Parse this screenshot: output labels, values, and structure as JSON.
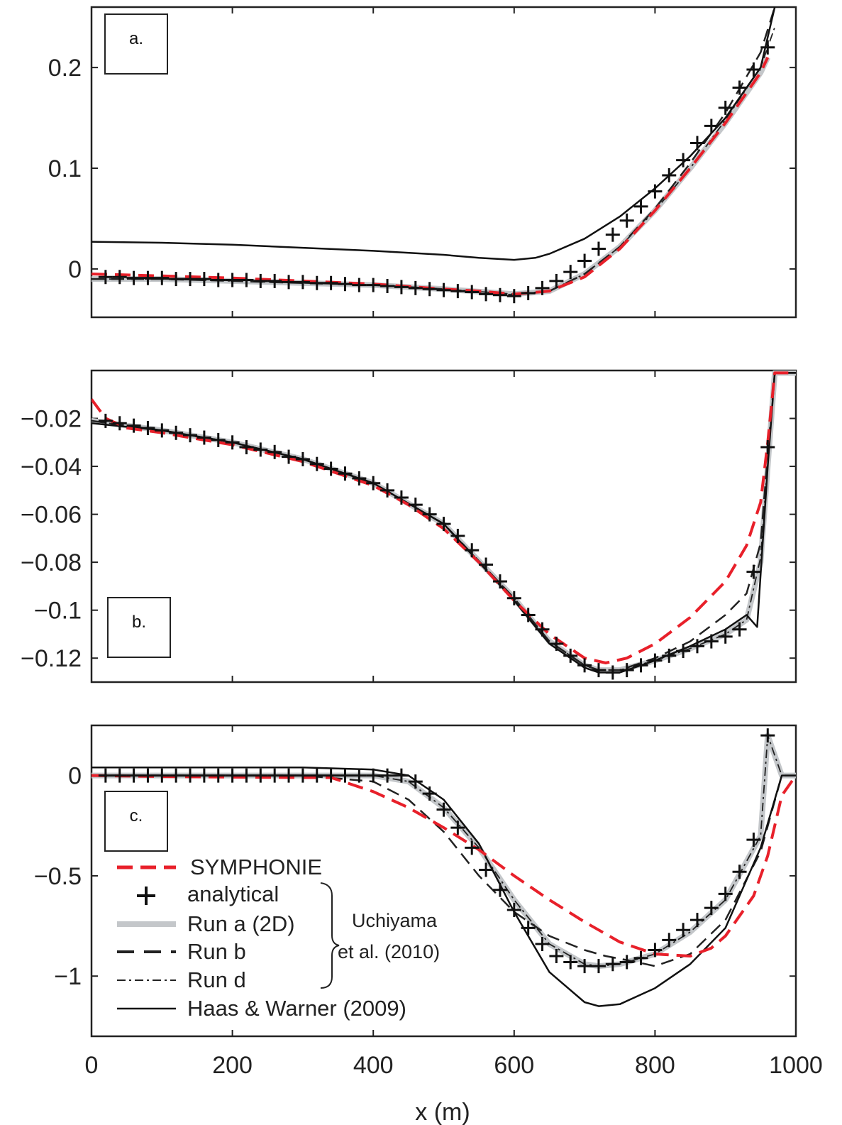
{
  "colors": {
    "symphonie": "#e8202a",
    "analytical": "#111111",
    "run_a": "#c4c7ca",
    "run_b": "#222222",
    "run_d": "#222222",
    "haas": "#111111"
  },
  "xlabel": "x (m)",
  "legend": {
    "entries": [
      "SYMPHONIE",
      "analytical",
      "Run a (2D)",
      "Run b",
      "Run d",
      "Haas & Warner (2009)"
    ],
    "group_note": [
      "Uchiyama",
      "et al. (2010)"
    ]
  },
  "chart_data": [
    {
      "type": "line",
      "panel_label": "a.",
      "xlim": [
        0,
        1000
      ],
      "ylim": [
        -0.048,
        0.26
      ],
      "xticks": [
        0,
        200,
        400,
        600,
        800,
        1000
      ],
      "yticks": [
        0,
        0.1,
        0.2
      ],
      "ytick_labels": [
        "0",
        "0.1",
        "0.2"
      ],
      "series": [
        {
          "name": "SYMPHONIE",
          "x": [
            0,
            100,
            200,
            300,
            400,
            500,
            550,
            600,
            650,
            700,
            750,
            800,
            850,
            900,
            950,
            960
          ],
          "y": [
            -0.005,
            -0.007,
            -0.009,
            -0.012,
            -0.015,
            -0.02,
            -0.022,
            -0.025,
            -0.022,
            -0.008,
            0.02,
            0.058,
            0.1,
            0.145,
            0.195,
            0.21
          ]
        },
        {
          "name": "analytical",
          "x": [
            20,
            40,
            60,
            80,
            100,
            120,
            140,
            160,
            180,
            200,
            220,
            240,
            260,
            280,
            300,
            320,
            340,
            360,
            380,
            400,
            420,
            440,
            460,
            480,
            500,
            520,
            540,
            560,
            580,
            600,
            620,
            640,
            660,
            680,
            700,
            720,
            740,
            760,
            780,
            800,
            820,
            840,
            860,
            880,
            900,
            920,
            940,
            960
          ],
          "y": [
            -0.008,
            -0.008,
            -0.009,
            -0.009,
            -0.009,
            -0.01,
            -0.01,
            -0.01,
            -0.011,
            -0.011,
            -0.011,
            -0.012,
            -0.012,
            -0.013,
            -0.013,
            -0.014,
            -0.014,
            -0.015,
            -0.016,
            -0.016,
            -0.017,
            -0.018,
            -0.019,
            -0.02,
            -0.021,
            -0.022,
            -0.023,
            -0.025,
            -0.026,
            -0.027,
            -0.024,
            -0.019,
            -0.012,
            -0.003,
            0.008,
            0.02,
            0.034,
            0.048,
            0.062,
            0.077,
            0.093,
            0.108,
            0.125,
            0.142,
            0.16,
            0.18,
            0.198,
            0.22
          ]
        },
        {
          "name": "Run a (2D)",
          "x": [
            0,
            100,
            200,
            300,
            400,
            500,
            600,
            650,
            700,
            750,
            800,
            850,
            900,
            950,
            960
          ],
          "y": [
            -0.01,
            -0.01,
            -0.012,
            -0.014,
            -0.016,
            -0.02,
            -0.025,
            -0.022,
            -0.005,
            0.022,
            0.058,
            0.1,
            0.145,
            0.195,
            0.21
          ]
        },
        {
          "name": "Run b",
          "x": [
            0,
            100,
            200,
            300,
            400,
            500,
            600,
            650,
            700,
            750,
            800,
            850,
            900,
            950,
            970
          ],
          "y": [
            -0.01,
            -0.01,
            -0.012,
            -0.014,
            -0.016,
            -0.02,
            -0.026,
            -0.022,
            -0.005,
            0.022,
            0.06,
            0.105,
            0.155,
            0.215,
            0.26
          ]
        },
        {
          "name": "Run d",
          "x": [
            0,
            100,
            200,
            300,
            400,
            500,
            600,
            650,
            700,
            750,
            800,
            850,
            900,
            950,
            970
          ],
          "y": [
            -0.01,
            -0.01,
            -0.012,
            -0.014,
            -0.016,
            -0.02,
            -0.025,
            -0.022,
            -0.005,
            0.022,
            0.058,
            0.1,
            0.148,
            0.2,
            0.24
          ]
        },
        {
          "name": "Haas & Warner (2009)",
          "x": [
            0,
            100,
            200,
            300,
            400,
            500,
            550,
            600,
            630,
            650,
            700,
            750,
            800,
            850,
            900,
            950,
            970
          ],
          "y": [
            0.027,
            0.026,
            0.024,
            0.021,
            0.018,
            0.014,
            0.011,
            0.009,
            0.011,
            0.015,
            0.03,
            0.052,
            0.08,
            0.112,
            0.15,
            0.2,
            0.26
          ]
        }
      ]
    },
    {
      "type": "line",
      "panel_label": "b.",
      "xlim": [
        0,
        1000
      ],
      "ylim": [
        -0.13,
        0.0
      ],
      "xticks": [
        0,
        200,
        400,
        600,
        800,
        1000
      ],
      "yticks": [
        -0.02,
        -0.04,
        -0.06,
        -0.08,
        -0.1,
        -0.12
      ],
      "ytick_labels": [
        "−0.02",
        "−0.04",
        "−0.06",
        "−0.08",
        "−0.1",
        "−0.12"
      ],
      "series": [
        {
          "name": "SYMPHONIE",
          "x": [
            0,
            20,
            50,
            100,
            200,
            300,
            400,
            450,
            500,
            550,
            600,
            650,
            700,
            730,
            760,
            800,
            850,
            900,
            930,
            950,
            960,
            970,
            1000
          ],
          "y": [
            -0.012,
            -0.02,
            -0.024,
            -0.026,
            -0.031,
            -0.038,
            -0.048,
            -0.056,
            -0.066,
            -0.08,
            -0.096,
            -0.11,
            -0.12,
            -0.122,
            -0.12,
            -0.114,
            -0.103,
            -0.088,
            -0.073,
            -0.055,
            -0.03,
            -0.001,
            -0.001
          ]
        },
        {
          "name": "analytical",
          "x": [
            20,
            40,
            60,
            80,
            100,
            120,
            140,
            160,
            180,
            200,
            220,
            240,
            260,
            280,
            300,
            320,
            340,
            360,
            380,
            400,
            420,
            440,
            460,
            480,
            500,
            520,
            540,
            560,
            580,
            600,
            620,
            640,
            660,
            680,
            700,
            720,
            740,
            760,
            780,
            800,
            820,
            840,
            860,
            880,
            900,
            920,
            940,
            960
          ],
          "y": [
            -0.021,
            -0.022,
            -0.023,
            -0.024,
            -0.025,
            -0.026,
            -0.027,
            -0.028,
            -0.029,
            -0.03,
            -0.032,
            -0.033,
            -0.034,
            -0.036,
            -0.037,
            -0.039,
            -0.041,
            -0.043,
            -0.045,
            -0.047,
            -0.05,
            -0.053,
            -0.056,
            -0.06,
            -0.064,
            -0.069,
            -0.075,
            -0.081,
            -0.088,
            -0.095,
            -0.102,
            -0.108,
            -0.114,
            -0.119,
            -0.123,
            -0.125,
            -0.126,
            -0.125,
            -0.123,
            -0.121,
            -0.119,
            -0.117,
            -0.115,
            -0.113,
            -0.111,
            -0.108,
            -0.084,
            -0.032
          ]
        },
        {
          "name": "Run a (2D)",
          "x": [
            0,
            100,
            200,
            300,
            400,
            500,
            600,
            650,
            700,
            720,
            750,
            800,
            850,
            900,
            930,
            950,
            960,
            970,
            1000
          ],
          "y": [
            -0.021,
            -0.025,
            -0.03,
            -0.037,
            -0.047,
            -0.064,
            -0.095,
            -0.113,
            -0.123,
            -0.125,
            -0.125,
            -0.121,
            -0.116,
            -0.11,
            -0.104,
            -0.08,
            -0.04,
            -0.001,
            -0.001
          ]
        },
        {
          "name": "Run b",
          "x": [
            0,
            100,
            200,
            300,
            400,
            500,
            600,
            650,
            700,
            720,
            750,
            800,
            850,
            900,
            930,
            950,
            960,
            970,
            1000
          ],
          "y": [
            -0.021,
            -0.025,
            -0.03,
            -0.037,
            -0.047,
            -0.064,
            -0.095,
            -0.113,
            -0.123,
            -0.125,
            -0.125,
            -0.12,
            -0.113,
            -0.102,
            -0.093,
            -0.072,
            -0.035,
            -0.001,
            -0.001
          ]
        },
        {
          "name": "Run d",
          "x": [
            0,
            100,
            200,
            300,
            400,
            500,
            600,
            650,
            700,
            720,
            750,
            800,
            850,
            900,
            930,
            950,
            960,
            970,
            1000
          ],
          "y": [
            -0.021,
            -0.025,
            -0.03,
            -0.037,
            -0.047,
            -0.064,
            -0.095,
            -0.113,
            -0.123,
            -0.125,
            -0.125,
            -0.121,
            -0.116,
            -0.11,
            -0.104,
            -0.078,
            -0.038,
            -0.001,
            -0.001
          ]
        },
        {
          "name": "Haas & Warner (2009)",
          "x": [
            0,
            100,
            200,
            300,
            400,
            500,
            600,
            650,
            700,
            720,
            750,
            800,
            850,
            900,
            930,
            945,
            960,
            970,
            1000
          ],
          "y": [
            -0.022,
            -0.025,
            -0.03,
            -0.037,
            -0.047,
            -0.064,
            -0.096,
            -0.114,
            -0.124,
            -0.126,
            -0.126,
            -0.121,
            -0.115,
            -0.108,
            -0.102,
            -0.107,
            -0.04,
            -0.001,
            -0.001
          ]
        }
      ]
    },
    {
      "type": "line",
      "panel_label": "c.",
      "xlim": [
        0,
        1000
      ],
      "ylim": [
        -1.3,
        0.25
      ],
      "xticks": [
        0,
        200,
        400,
        600,
        800,
        1000
      ],
      "xtick_labels": [
        "0",
        "200",
        "400",
        "600",
        "800",
        "1000"
      ],
      "yticks": [
        0,
        -0.5,
        -1
      ],
      "ytick_labels": [
        "0",
        "−0.5",
        "−1"
      ],
      "series": [
        {
          "name": "SYMPHONIE",
          "x": [
            0,
            100,
            200,
            300,
            340,
            400,
            450,
            500,
            550,
            600,
            650,
            700,
            750,
            800,
            850,
            880,
            900,
            940,
            960,
            980,
            1000
          ],
          "y": [
            0.0,
            -0.005,
            -0.008,
            -0.01,
            -0.01,
            -0.08,
            -0.16,
            -0.26,
            -0.37,
            -0.5,
            -0.62,
            -0.73,
            -0.83,
            -0.89,
            -0.9,
            -0.86,
            -0.8,
            -0.6,
            -0.4,
            -0.1,
            0.0
          ]
        },
        {
          "name": "analytical",
          "x": [
            20,
            40,
            60,
            80,
            100,
            120,
            140,
            160,
            180,
            200,
            220,
            240,
            260,
            280,
            300,
            320,
            340,
            360,
            380,
            400,
            420,
            440,
            460,
            480,
            500,
            520,
            540,
            560,
            580,
            600,
            620,
            640,
            660,
            680,
            700,
            720,
            740,
            760,
            780,
            800,
            820,
            840,
            860,
            880,
            900,
            920,
            940,
            960
          ],
          "y": [
            0.0,
            0.0,
            0.0,
            0.0,
            0.0,
            0.0,
            0.0,
            0.0,
            0.0,
            0.0,
            0.0,
            0.0,
            0.0,
            0.0,
            0.0,
            0.0,
            0.0,
            0.0,
            0.0,
            0.0,
            0.0,
            0.0,
            -0.03,
            -0.09,
            -0.17,
            -0.26,
            -0.36,
            -0.47,
            -0.57,
            -0.67,
            -0.76,
            -0.84,
            -0.9,
            -0.93,
            -0.95,
            -0.95,
            -0.94,
            -0.93,
            -0.91,
            -0.87,
            -0.82,
            -0.77,
            -0.72,
            -0.66,
            -0.59,
            -0.48,
            -0.32,
            0.2
          ]
        },
        {
          "name": "Run a (2D)",
          "x": [
            0,
            100,
            200,
            300,
            400,
            450,
            500,
            550,
            600,
            650,
            700,
            720,
            750,
            800,
            850,
            900,
            950,
            960,
            980,
            1000
          ],
          "y": [
            0.0,
            0.0,
            0.0,
            0.0,
            0.0,
            -0.03,
            -0.16,
            -0.36,
            -0.62,
            -0.84,
            -0.94,
            -0.95,
            -0.94,
            -0.89,
            -0.78,
            -0.62,
            -0.3,
            0.2,
            0.0,
            0.0
          ]
        },
        {
          "name": "Run b",
          "x": [
            0,
            100,
            200,
            300,
            400,
            450,
            500,
            550,
            600,
            650,
            700,
            730,
            760,
            800,
            850,
            900,
            950,
            980,
            1000
          ],
          "y": [
            0.0,
            0.0,
            0.0,
            0.0,
            -0.03,
            -0.12,
            -0.28,
            -0.5,
            -0.68,
            -0.8,
            -0.87,
            -0.9,
            -0.92,
            -0.95,
            -0.89,
            -0.72,
            -0.38,
            0.0,
            0.0
          ]
        },
        {
          "name": "Run d",
          "x": [
            0,
            100,
            200,
            300,
            400,
            450,
            500,
            550,
            600,
            650,
            700,
            720,
            750,
            800,
            850,
            900,
            950,
            960,
            980,
            1000
          ],
          "y": [
            0.0,
            0.0,
            0.0,
            0.0,
            0.0,
            -0.03,
            -0.16,
            -0.36,
            -0.62,
            -0.84,
            -0.94,
            -0.95,
            -0.94,
            -0.89,
            -0.78,
            -0.62,
            -0.3,
            0.2,
            0.0,
            0.0
          ]
        },
        {
          "name": "Haas & Warner (2009)",
          "x": [
            0,
            100,
            200,
            300,
            400,
            450,
            500,
            550,
            600,
            650,
            700,
            720,
            750,
            800,
            850,
            900,
            950,
            980,
            1000
          ],
          "y": [
            0.04,
            0.04,
            0.04,
            0.04,
            0.03,
            0.0,
            -0.12,
            -0.34,
            -0.68,
            -0.98,
            -1.13,
            -1.15,
            -1.14,
            -1.06,
            -0.94,
            -0.76,
            -0.36,
            0.0,
            0.0
          ]
        }
      ]
    }
  ]
}
